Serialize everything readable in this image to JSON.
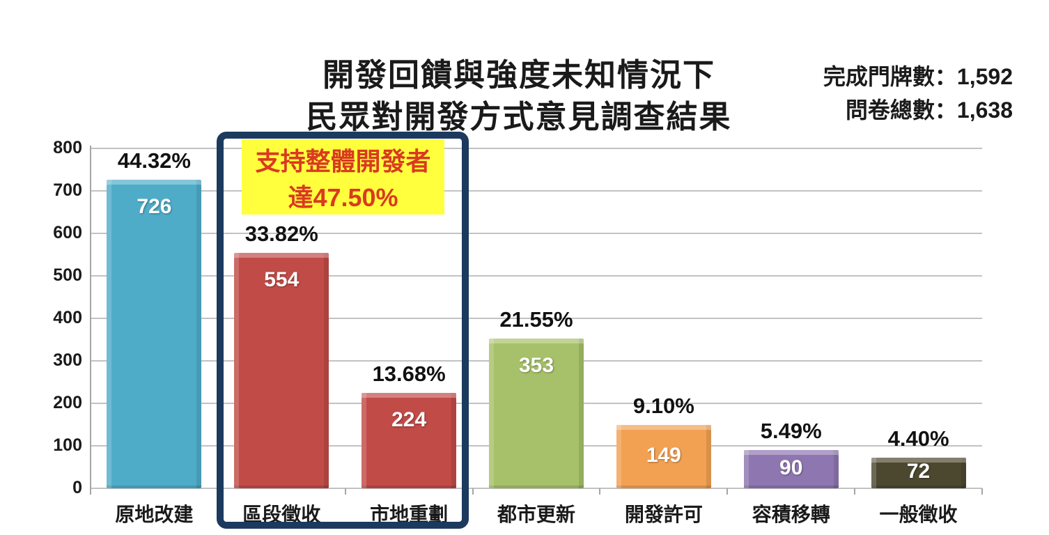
{
  "header": {
    "title_line1": "開發回饋與強度未知情況下",
    "title_line2": "民眾對開發方式意見調查結果",
    "stat_line1": "完成門牌數：1,592",
    "stat_line2": "問卷總數：1,638"
  },
  "annotation": {
    "line1": "支持整體開發者",
    "line2": "達47.50%",
    "bg_color": "#ffff3d",
    "text_color": "#d93a20"
  },
  "highlight_box": {
    "border_color": "#1c3a5e",
    "enclosed_categories": [
      "區段徵收",
      "市地重劃"
    ]
  },
  "chart_data": {
    "type": "bar",
    "title": "開發回饋與強度未知情況下 民眾對開發方式意見調查結果",
    "categories": [
      "原地改建",
      "區段徵收",
      "市地重劃",
      "都市更新",
      "開發許可",
      "容積移轉",
      "一般徵收"
    ],
    "values": [
      726,
      554,
      224,
      353,
      149,
      90,
      72
    ],
    "percent_labels": [
      "44.32%",
      "33.82%",
      "13.68%",
      "21.55%",
      "9.10%",
      "5.49%",
      "4.40%"
    ],
    "bar_colors": [
      "#4facc8",
      "#c14b47",
      "#c14b47",
      "#a6c169",
      "#f2a153",
      "#8e76b0",
      "#4c4830"
    ],
    "ylim": [
      0,
      800
    ],
    "ytick_step": 100,
    "grid": true,
    "grid_color": "#c2c2c2",
    "axis_color": "#a6a6a6",
    "legend_position": "none",
    "xlabel": "",
    "ylabel": ""
  }
}
